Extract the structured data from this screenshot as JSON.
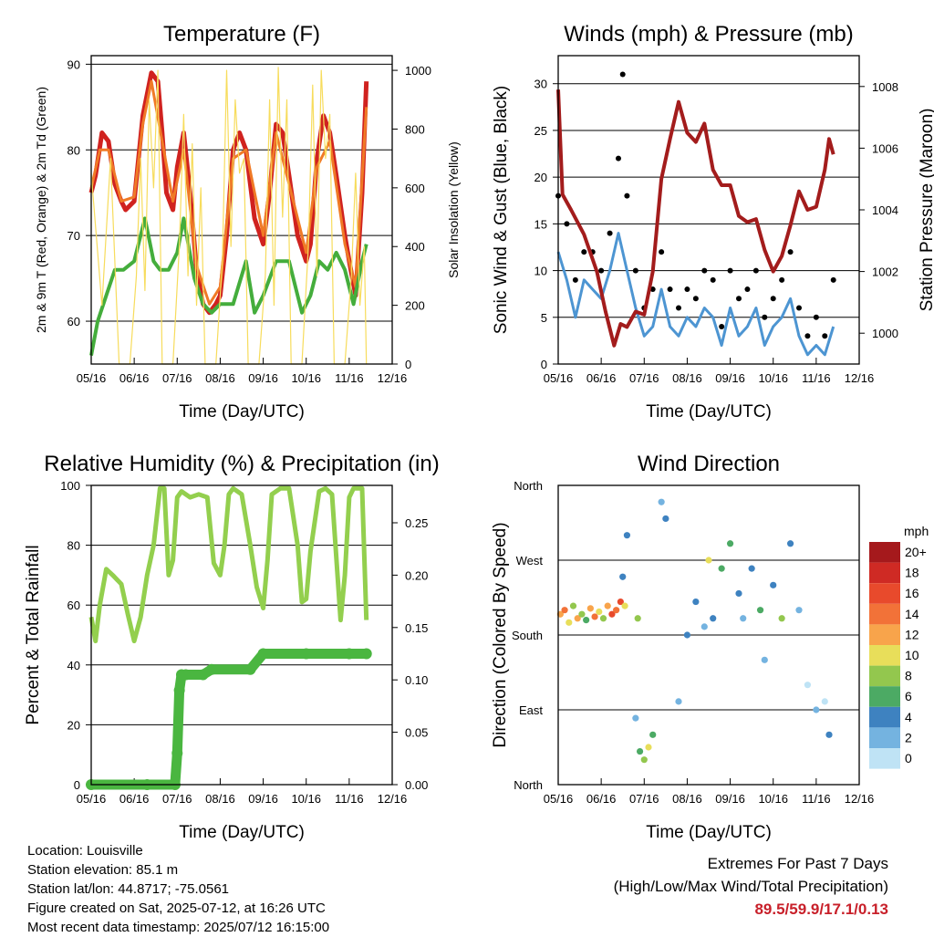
{
  "charts": {
    "temperature": {
      "title": "Temperature (F)",
      "ylabel_left": "2m & 9m T (Red, Orange) & 2m Td (Green)",
      "ylabel_right": "Solar Insolation (Yellow)",
      "xlabel": "Time (Day/UTC)"
    },
    "winds": {
      "title": "Winds (mph) & Pressure (mb)",
      "ylabel_left": "Sonic Wind & Gust (Blue, Black)",
      "ylabel_right": "Station Pressure (Maroon)",
      "xlabel": "Time (Day/UTC)"
    },
    "humidity": {
      "title": "Relative Humidity (%) & Precipitation (in)",
      "ylabel_left": "Percent & Total Rainfall",
      "xlabel": "Time (Day/UTC)"
    },
    "direction": {
      "title": "Wind Direction",
      "ylabel_left": "Direction (Colored By Speed)",
      "xlabel": "Time (Day/UTC)",
      "legend_title": "mph"
    }
  },
  "footer": {
    "location": "Location: Louisville",
    "elevation": "Station elevation: 85.1 m",
    "latlon": "Station lat/lon: 44.8717; -75.0561",
    "created": "Figure created on Sat, 2025-07-12, at 16:26 UTC",
    "recent": "Most recent data timestamp: 2025/07/12 16:15:00",
    "extremes_title": "Extremes For Past 7 Days",
    "extremes_desc": "(High/Low/Max Wind/Total Precipitation)",
    "extremes_values": "89.5/59.9/17.1/0.13"
  },
  "chart_data": [
    {
      "id": "temperature",
      "type": "line",
      "title": "Temperature (F)",
      "xlabel": "Time (Day/UTC)",
      "ylabel": "2m & 9m T (Red, Orange) & 2m Td (Green)",
      "y2label": "Solar Insolation (Yellow)",
      "x_ticks": [
        "05/16",
        "06/16",
        "07/16",
        "08/16",
        "09/16",
        "10/16",
        "11/16",
        "12/16"
      ],
      "ylim": [
        55,
        91
      ],
      "y_ticks": [
        60,
        70,
        80,
        90
      ],
      "y2lim": [
        0,
        1050
      ],
      "y2_ticks": [
        0,
        200,
        400,
        600,
        800,
        1000
      ],
      "colors": {
        "t2m": "#d0221f",
        "t9m": "#f07a26",
        "td2m": "#44ad3c",
        "solar": "#f7dc5c"
      },
      "series": [
        {
          "key": "t2m",
          "axis": "left",
          "x": [
            0,
            0.1,
            0.25,
            0.4,
            0.55,
            0.7,
            0.8,
            1.0,
            1.2,
            1.4,
            1.55,
            1.65,
            1.75,
            1.9,
            2.0,
            2.15,
            2.3,
            2.45,
            2.6,
            2.75,
            2.9,
            3.0,
            3.15,
            3.3,
            3.45,
            3.6,
            3.8,
            4.0,
            4.15,
            4.3,
            4.45,
            4.6,
            4.8,
            5.0,
            5.1,
            5.25,
            5.4,
            5.55,
            5.7,
            5.9,
            6.0,
            6.15,
            6.3,
            6.4
          ],
          "y": [
            75,
            77,
            82,
            81,
            76,
            74,
            73,
            74,
            84,
            89,
            88,
            82,
            75,
            73,
            78,
            82,
            75,
            66,
            62,
            61,
            62,
            63,
            70,
            80,
            82,
            80,
            72,
            69,
            75,
            83,
            82,
            77,
            70,
            67,
            69,
            79,
            84,
            82,
            77,
            70,
            67,
            63,
            75,
            88
          ]
        },
        {
          "key": "t9m",
          "axis": "left",
          "x": [
            0,
            0.2,
            0.4,
            0.7,
            1.0,
            1.2,
            1.4,
            1.65,
            1.9,
            2.15,
            2.45,
            2.75,
            3.0,
            3.3,
            3.6,
            4.0,
            4.3,
            4.6,
            5.0,
            5.25,
            5.55,
            5.9,
            6.15,
            6.4
          ],
          "y": [
            75.5,
            80,
            80,
            74,
            74.5,
            83,
            88,
            81,
            74,
            80,
            66.5,
            62,
            64,
            79,
            80,
            70,
            82,
            76,
            68,
            78,
            81,
            69,
            64,
            85
          ]
        },
        {
          "key": "td2m",
          "axis": "left",
          "x": [
            0,
            0.15,
            0.35,
            0.55,
            0.75,
            1.0,
            1.25,
            1.45,
            1.6,
            1.8,
            2.0,
            2.15,
            2.4,
            2.6,
            2.8,
            3.0,
            3.3,
            3.6,
            3.8,
            4.0,
            4.3,
            4.6,
            4.9,
            5.1,
            5.3,
            5.5,
            5.7,
            5.9,
            6.1,
            6.3,
            6.4
          ],
          "y": [
            56,
            60,
            63,
            66,
            66,
            67,
            72,
            67,
            66,
            66,
            68,
            72,
            65,
            62,
            61,
            62,
            62,
            67,
            61,
            63,
            67,
            67,
            61,
            63,
            67,
            66,
            68,
            66,
            62,
            67,
            69
          ]
        },
        {
          "key": "solar",
          "axis": "right",
          "x": [
            0,
            0.25,
            0.45,
            0.65,
            0.9,
            1.05,
            1.15,
            1.25,
            1.35,
            1.45,
            1.55,
            1.65,
            1.9,
            2.05,
            2.15,
            2.25,
            2.35,
            2.45,
            2.55,
            2.65,
            2.9,
            3.05,
            3.15,
            3.25,
            3.35,
            3.45,
            3.55,
            3.65,
            3.9,
            4.05,
            4.15,
            4.25,
            4.35,
            4.45,
            4.55,
            4.65,
            4.9,
            5.05,
            5.15,
            5.25,
            5.35,
            5.45,
            5.55,
            5.65,
            5.9,
            6.05,
            6.15,
            6.25,
            6.35,
            6.4
          ],
          "y": [
            650,
            200,
            700,
            0,
            0,
            300,
            700,
            250,
            900,
            600,
            1000,
            0,
            0,
            400,
            850,
            300,
            750,
            200,
            600,
            0,
            0,
            350,
            1000,
            400,
            900,
            650,
            700,
            0,
            0,
            300,
            900,
            200,
            1010,
            500,
            900,
            0,
            0,
            400,
            950,
            300,
            1000,
            700,
            850,
            0,
            0,
            300,
            650,
            200,
            400,
            0
          ]
        }
      ]
    },
    {
      "id": "winds",
      "type": "line",
      "title": "Winds (mph) & Pressure (mb)",
      "xlabel": "Time (Day/UTC)",
      "ylabel": "Sonic Wind & Gust (Blue, Black)",
      "y2label": "Station Pressure (Maroon)",
      "x_ticks": [
        "05/16",
        "06/16",
        "07/16",
        "08/16",
        "09/16",
        "10/16",
        "11/16",
        "12/16"
      ],
      "ylim": [
        0,
        33
      ],
      "y_ticks": [
        0,
        5,
        10,
        15,
        20,
        25,
        30
      ],
      "y2lim": [
        999.0,
        1009.0
      ],
      "y2_ticks": [
        1000,
        1002,
        1004,
        1006,
        1008
      ],
      "colors": {
        "wind": "#4d95d2",
        "gust": "#000000",
        "pressure": "#a31c1c"
      },
      "series": [
        {
          "key": "wind",
          "axis": "left",
          "x": [
            0,
            0.2,
            0.4,
            0.6,
            0.8,
            1.0,
            1.2,
            1.4,
            1.6,
            1.8,
            2.0,
            2.2,
            2.4,
            2.6,
            2.8,
            3.0,
            3.2,
            3.4,
            3.6,
            3.8,
            4.0,
            4.2,
            4.4,
            4.6,
            4.8,
            5.0,
            5.2,
            5.4,
            5.6,
            5.8,
            6.0,
            6.2,
            6.4
          ],
          "y": [
            12,
            9,
            5,
            9,
            8,
            7,
            10,
            14,
            10,
            6,
            3,
            4,
            8,
            4,
            3,
            5,
            4,
            6,
            5,
            2,
            6,
            3,
            4,
            6,
            2,
            4,
            5,
            7,
            3,
            1,
            2,
            1,
            4
          ]
        },
        {
          "key": "gust",
          "axis": "left",
          "x": [
            0,
            0.2,
            0.4,
            0.6,
            0.8,
            1.0,
            1.2,
            1.4,
            1.5,
            1.6,
            1.8,
            2.0,
            2.2,
            2.4,
            2.6,
            2.8,
            3.0,
            3.2,
            3.4,
            3.6,
            3.8,
            4.0,
            4.2,
            4.4,
            4.6,
            4.8,
            5.0,
            5.2,
            5.4,
            5.6,
            5.8,
            6.0,
            6.2,
            6.4
          ],
          "y": [
            18,
            15,
            9,
            12,
            12,
            10,
            14,
            22,
            31,
            18,
            10,
            6,
            8,
            12,
            8,
            6,
            8,
            7,
            10,
            9,
            4,
            10,
            7,
            8,
            10,
            5,
            7,
            9,
            12,
            6,
            3,
            5,
            3,
            9
          ]
        },
        {
          "key": "pressure",
          "axis": "right",
          "x": [
            0,
            0.1,
            0.3,
            0.6,
            0.9,
            1.1,
            1.3,
            1.45,
            1.6,
            1.8,
            2.0,
            2.2,
            2.4,
            2.6,
            2.8,
            3.0,
            3.2,
            3.4,
            3.6,
            3.8,
            4.0,
            4.2,
            4.4,
            4.6,
            4.8,
            5.0,
            5.2,
            5.4,
            5.6,
            5.8,
            6.0,
            6.2,
            6.3,
            6.4
          ],
          "y": [
            1007.9,
            1004.5,
            1004.0,
            1003.2,
            1002.0,
            1000.7,
            999.6,
            1000.3,
            1000.2,
            1000.7,
            1000.6,
            1002.0,
            1005.0,
            1006.3,
            1007.5,
            1006.5,
            1006.2,
            1006.8,
            1005.3,
            1004.8,
            1004.8,
            1003.8,
            1003.6,
            1003.7,
            1002.7,
            1002.0,
            1002.5,
            1003.5,
            1004.6,
            1004.0,
            1004.1,
            1005.3,
            1006.3,
            1005.8
          ]
        }
      ]
    },
    {
      "id": "humidity",
      "type": "line",
      "title": "Relative Humidity (%) & Precipitation (in)",
      "xlabel": "Time (Day/UTC)",
      "ylabel": "Percent & Total Rainfall",
      "x_ticks": [
        "05/16",
        "06/16",
        "07/16",
        "08/16",
        "09/16",
        "10/16",
        "11/16",
        "12/16"
      ],
      "ylim": [
        0,
        100
      ],
      "y_ticks": [
        0,
        20,
        40,
        60,
        80,
        100
      ],
      "y2lim": [
        0,
        0.2857
      ],
      "y2_ticks": [
        0.0,
        0.05,
        0.1,
        0.15,
        0.2,
        0.25
      ],
      "colors": {
        "rh": "#93cf4e",
        "precip": "#4ab640"
      },
      "series": [
        {
          "key": "rh",
          "axis": "left",
          "x": [
            0,
            0.1,
            0.2,
            0.35,
            0.5,
            0.7,
            0.85,
            1.0,
            1.15,
            1.3,
            1.45,
            1.6,
            1.7,
            1.8,
            1.9,
            2.0,
            2.1,
            2.3,
            2.5,
            2.7,
            2.85,
            3.0,
            3.1,
            3.2,
            3.3,
            3.5,
            3.7,
            3.85,
            4.0,
            4.1,
            4.2,
            4.4,
            4.6,
            4.8,
            4.9,
            5.0,
            5.1,
            5.3,
            5.45,
            5.6,
            5.8,
            5.9,
            6.0,
            6.1,
            6.3,
            6.4
          ],
          "y": [
            56,
            48,
            60,
            72,
            70,
            67,
            57,
            48,
            56,
            70,
            80,
            99,
            99,
            70,
            75,
            96,
            98,
            96,
            97,
            96,
            74,
            70,
            80,
            97,
            99,
            97,
            80,
            66,
            59,
            75,
            97,
            99,
            99,
            80,
            61,
            62,
            78,
            98,
            99,
            97,
            55,
            70,
            96,
            99,
            99,
            55
          ]
        },
        {
          "key": "precip",
          "axis": "right",
          "x": [
            0,
            1.3,
            1.95,
            2.0,
            2.05,
            2.1,
            2.2,
            2.6,
            2.8,
            3.7,
            4.0,
            5.0,
            6.0,
            6.4
          ],
          "y": [
            0.0,
            0.0,
            0.0,
            0.03,
            0.09,
            0.105,
            0.105,
            0.105,
            0.11,
            0.11,
            0.125,
            0.125,
            0.125,
            0.125
          ]
        }
      ]
    },
    {
      "id": "direction",
      "type": "scatter",
      "title": "Wind Direction",
      "xlabel": "Time (Day/UTC)",
      "ylabel": "Direction (Colored By Speed)",
      "x_ticks": [
        "05/16",
        "06/16",
        "07/16",
        "08/16",
        "09/16",
        "10/16",
        "11/16",
        "12/16"
      ],
      "y_ticks": [
        "North",
        "East",
        "South",
        "West",
        "North"
      ],
      "ylim": [
        0,
        360
      ],
      "colorbar": {
        "title": "mph",
        "labels": [
          "20+",
          "18",
          "16",
          "14",
          "12",
          "10",
          "8",
          "6",
          "4",
          "2",
          "0"
        ],
        "colors": [
          "#a5191c",
          "#cf2a24",
          "#e84a2c",
          "#f27238",
          "#f8a44b",
          "#e8de5a",
          "#93c74e",
          "#4caa64",
          "#3e82c0",
          "#74b3e0",
          "#bfe3f5"
        ]
      },
      "series": [
        {
          "x": [
            0.05,
            0.15,
            0.25,
            0.35,
            0.45,
            0.55,
            0.65,
            0.75,
            0.85,
            0.95,
            1.05,
            1.15,
            1.25,
            1.35,
            1.45,
            1.55
          ],
          "y": [
            205,
            210,
            195,
            215,
            200,
            205,
            198,
            212,
            202,
            208,
            200,
            215,
            205,
            210,
            220,
            215
          ],
          "speed": [
            12,
            14,
            10,
            8,
            12,
            8,
            6,
            12,
            14,
            10,
            8,
            12,
            16,
            14,
            16,
            10
          ]
        },
        {
          "x": [
            1.5,
            1.6,
            1.8,
            1.85,
            1.9,
            2.0,
            2.1,
            2.2,
            2.4,
            2.5,
            2.8,
            3.0,
            3.2,
            3.4,
            3.5,
            3.6,
            3.8,
            4.0,
            4.2,
            4.3,
            4.5,
            4.7,
            4.8,
            5.0,
            5.2,
            5.4,
            5.6,
            5.8,
            6.0,
            6.2,
            6.3
          ],
          "y": [
            250,
            300,
            80,
            200,
            40,
            30,
            45,
            60,
            340,
            320,
            100,
            180,
            220,
            190,
            270,
            200,
            260,
            290,
            230,
            200,
            260,
            210,
            150,
            240,
            200,
            290,
            210,
            120,
            90,
            100,
            60
          ],
          "speed": [
            4,
            4,
            2,
            8,
            6,
            8,
            10,
            6,
            2,
            4,
            2,
            4,
            4,
            2,
            10,
            4,
            6,
            6,
            4,
            2,
            4,
            6,
            2,
            4,
            8,
            4,
            2,
            0,
            2,
            0,
            4
          ]
        }
      ]
    }
  ]
}
